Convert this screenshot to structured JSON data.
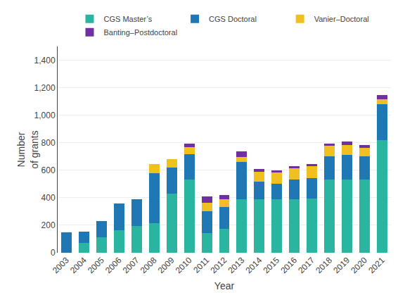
{
  "chart_data": {
    "type": "bar",
    "stacked": true,
    "categories": [
      "2003",
      "2004",
      "2005",
      "2006",
      "2007",
      "2008",
      "2009",
      "2010",
      "2011",
      "2012",
      "2013",
      "2014",
      "2015",
      "2016",
      "2017",
      "2018",
      "2019",
      "2020",
      "2021"
    ],
    "series": [
      {
        "name": "CGS Master’s",
        "color": "#2ab5a0",
        "values": [
          0,
          70,
          115,
          165,
          195,
          215,
          430,
          530,
          145,
          175,
          390,
          390,
          390,
          390,
          395,
          530,
          530,
          530,
          820
        ]
      },
      {
        "name": "CGS Doctoral",
        "color": "#1f78b4",
        "values": [
          148,
          83,
          113,
          193,
          193,
          363,
          188,
          185,
          155,
          158,
          270,
          128,
          113,
          143,
          148,
          173,
          183,
          173,
          258
        ]
      },
      {
        "name": "Vanier–Doctoral",
        "color": "#f0c020",
        "values": [
          0,
          0,
          0,
          0,
          0,
          65,
          65,
          53,
          65,
          55,
          35,
          73,
          83,
          83,
          88,
          73,
          68,
          58,
          40
        ]
      },
      {
        "name": "Banting–Postdoctoral",
        "color": "#7030a0",
        "values": [
          0,
          0,
          0,
          0,
          0,
          0,
          0,
          28,
          43,
          33,
          43,
          18,
          13,
          13,
          13,
          18,
          28,
          23,
          28
        ]
      }
    ],
    "xlabel": "Year",
    "ylabel": "Number\nof grants",
    "ylim": [
      0,
      1500
    ],
    "yticks": [
      0,
      200,
      400,
      600,
      800,
      {
        "value": 1000,
        "label": "1,000"
      },
      {
        "value": 1200,
        "label": "1,200"
      },
      {
        "value": 1400,
        "label": "1,400"
      }
    ],
    "grid": true,
    "legend": "top"
  }
}
